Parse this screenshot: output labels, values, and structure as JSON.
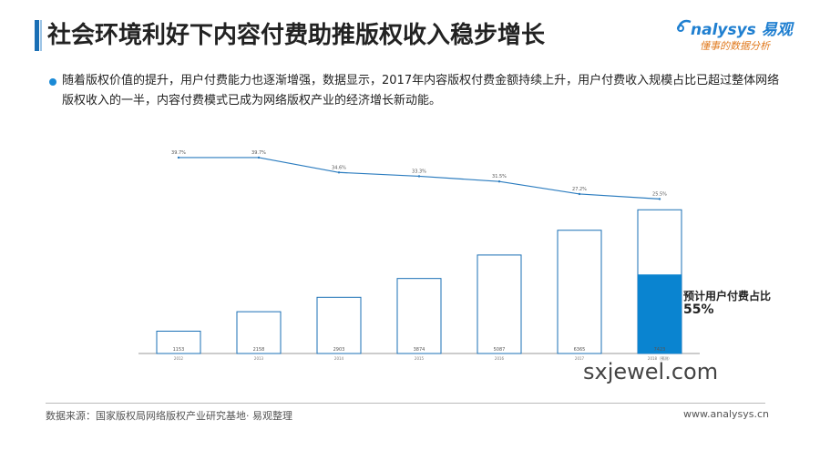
{
  "header": {
    "title": "社会环境利好下内容付费助推版权收入稳步增长"
  },
  "logo": {
    "brand": "nalysys 易观",
    "tagline": "懂事的数据分析"
  },
  "bullet": {
    "text": "随着版权价值的提升，用户付费能力也逐渐增强，数据显示，2017年内容版权付费金额持续上升，用户付费收入规模占比已超过整体网络版权收入的一半，内容付费模式已成为网络版权产业的经济增长新动能。"
  },
  "chart_data": {
    "type": "bar",
    "categories": [
      "2012",
      "2013",
      "2014",
      "2015",
      "2016",
      "2017",
      "2018（预测）"
    ],
    "series": [
      {
        "type": "bar",
        "values": [
          1153,
          2158,
          2903,
          3874,
          5087,
          6365,
          7423
        ]
      },
      {
        "type": "line",
        "values": [
          39.7,
          39.7,
          34.6,
          33.3,
          31.5,
          27.2,
          25.5
        ],
        "labels": [
          "39.7%",
          "39.7%",
          "34.6%",
          "33.3%",
          "31.5%",
          "27.2%",
          "25.5%"
        ]
      }
    ],
    "highlight": {
      "category": "2018（预测）",
      "filled_fraction": 0.55,
      "color": "#0a84d0"
    },
    "ylim": [
      0,
      8000
    ],
    "line_ylim": [
      0,
      50
    ],
    "colors": {
      "bar_stroke": "#1a6fb5",
      "line": "#2b7cbf"
    }
  },
  "callout": {
    "label": "预计用户付费占比",
    "value": "55%"
  },
  "footer": {
    "source": "数据来源：国家版权局网络版权产业研究基地· 易观整理",
    "site": "www.analysys.cn"
  },
  "watermark": "sxjewel.com"
}
